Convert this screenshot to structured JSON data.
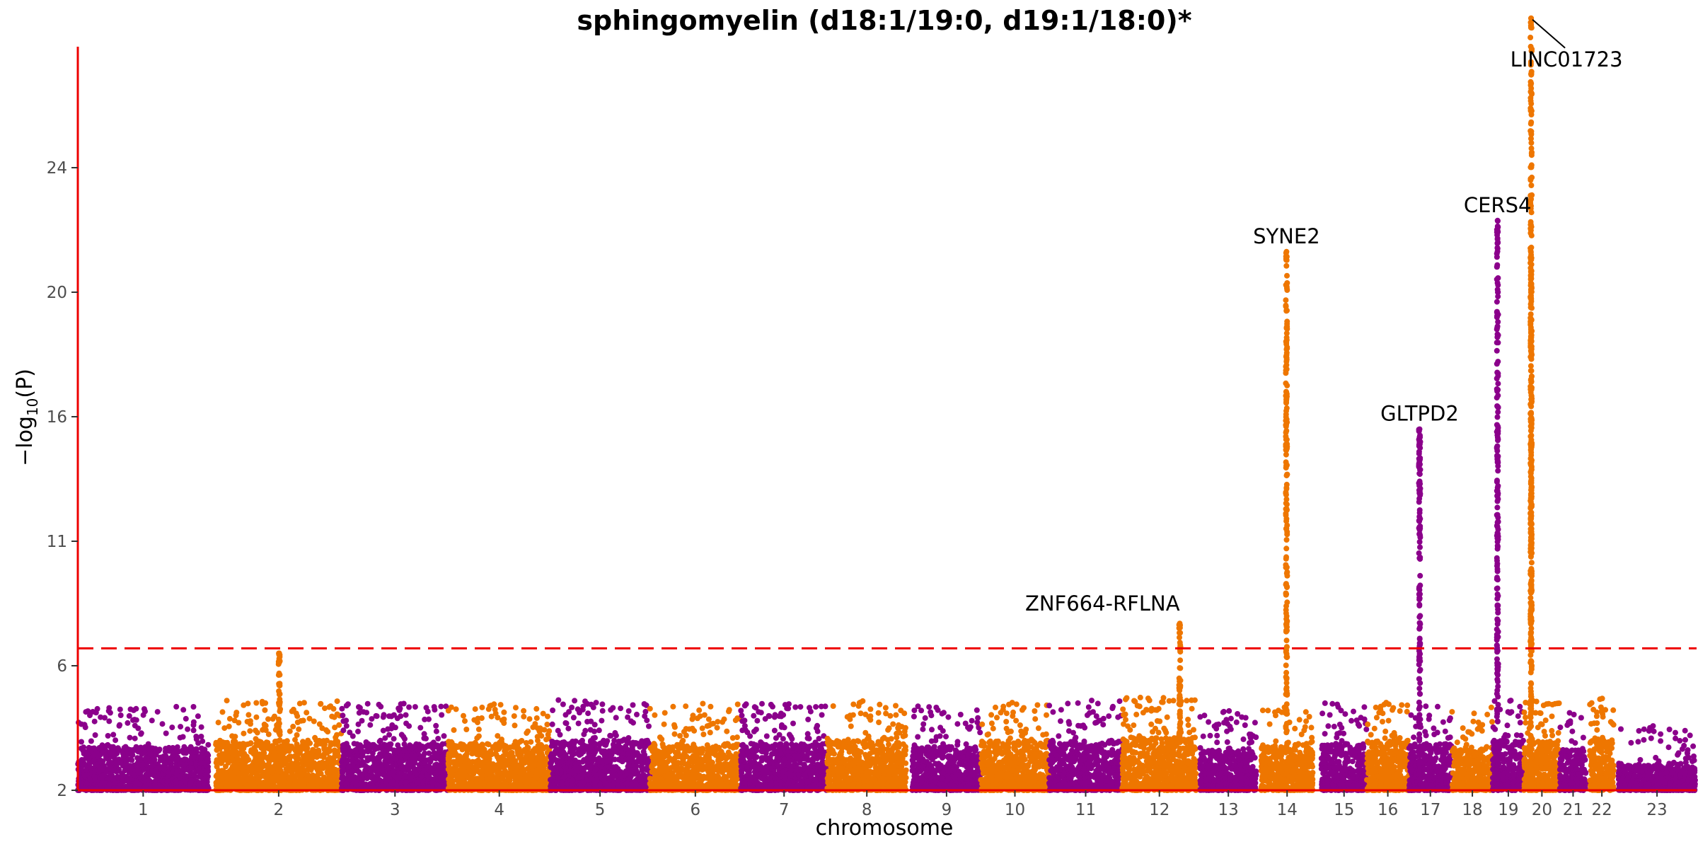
{
  "chart_data": {
    "type": "scatter",
    "subtype": "manhattan",
    "title": "sphingomyelin (d18:1/19:0, d19:1/18:0)*",
    "xlabel": "chromosome",
    "ylabel": "−log",
    "ylabel_sub": "10",
    "ylabel_tail": "(P)",
    "ylim": [
      2,
      28
    ],
    "yticks": [
      2,
      6,
      11,
      16,
      20,
      24
    ],
    "significance_line": 6.7,
    "colors": {
      "odd": "#8B008B",
      "even": "#EE7600",
      "axis": "#EE0000",
      "threshold": "#EE0000"
    },
    "chromosomes": [
      {
        "label": "1",
        "start": 0,
        "end": 10.9,
        "base_max": 3.4
      },
      {
        "label": "2",
        "start": 11.5,
        "end": 22.0,
        "base_max": 3.6
      },
      {
        "label": "3",
        "start": 22.0,
        "end": 30.9,
        "base_max": 3.5
      },
      {
        "label": "4",
        "start": 30.9,
        "end": 39.4,
        "base_max": 3.5
      },
      {
        "label": "5",
        "start": 39.4,
        "end": 47.7,
        "base_max": 3.6
      },
      {
        "label": "6",
        "start": 47.7,
        "end": 55.3,
        "base_max": 3.5
      },
      {
        "label": "7",
        "start": 55.3,
        "end": 62.5,
        "base_max": 3.5
      },
      {
        "label": "8",
        "start": 62.5,
        "end": 69.1,
        "base_max": 3.6
      },
      {
        "label": "9",
        "start": 69.6,
        "end": 75.3,
        "base_max": 3.4
      },
      {
        "label": "10",
        "start": 75.3,
        "end": 81.0,
        "base_max": 3.6
      },
      {
        "label": "11",
        "start": 81.0,
        "end": 87.1,
        "base_max": 3.6
      },
      {
        "label": "12",
        "start": 87.1,
        "end": 93.3,
        "base_max": 3.7
      },
      {
        "label": "13",
        "start": 93.6,
        "end": 98.3,
        "base_max": 3.3
      },
      {
        "label": "14",
        "start": 98.7,
        "end": 103.0,
        "base_max": 3.4
      },
      {
        "label": "15",
        "start": 103.7,
        "end": 107.5,
        "base_max": 3.5
      },
      {
        "label": "16",
        "start": 107.5,
        "end": 111.0,
        "base_max": 3.6
      },
      {
        "label": "17",
        "start": 111.0,
        "end": 114.6,
        "base_max": 3.5
      },
      {
        "label": "18",
        "start": 114.6,
        "end": 118.0,
        "base_max": 3.4
      },
      {
        "label": "19",
        "start": 118.0,
        "end": 120.6,
        "base_max": 3.6
      },
      {
        "label": "20",
        "start": 120.6,
        "end": 123.6,
        "base_max": 3.6
      },
      {
        "label": "21",
        "start": 123.6,
        "end": 125.8,
        "base_max": 3.3
      },
      {
        "label": "22",
        "start": 126.1,
        "end": 128.1,
        "base_max": 3.7
      },
      {
        "label": "23",
        "start": 128.5,
        "end": 134.9,
        "base_max": 2.8
      }
    ],
    "peaks": [
      {
        "chrom": "2",
        "pos": 16.8,
        "max": 6.5
      },
      {
        "chrom": "12",
        "pos": 91.9,
        "max": 7.7,
        "gene": "ZNF664-RFLNA"
      },
      {
        "chrom": "14",
        "pos": 100.8,
        "max": 21.3,
        "gene": "SYNE2"
      },
      {
        "chrom": "17",
        "pos": 111.9,
        "max": 15.5,
        "gene": "GLTPD2"
      },
      {
        "chrom": "19",
        "pos": 118.4,
        "max": 22.3,
        "gene": "CERS4"
      },
      {
        "chrom": "20",
        "pos": 121.2,
        "max": 21.2
      },
      {
        "chrom": "20",
        "pos": 121.2,
        "max": 28.8,
        "gene": "LINC01723"
      }
    ]
  }
}
